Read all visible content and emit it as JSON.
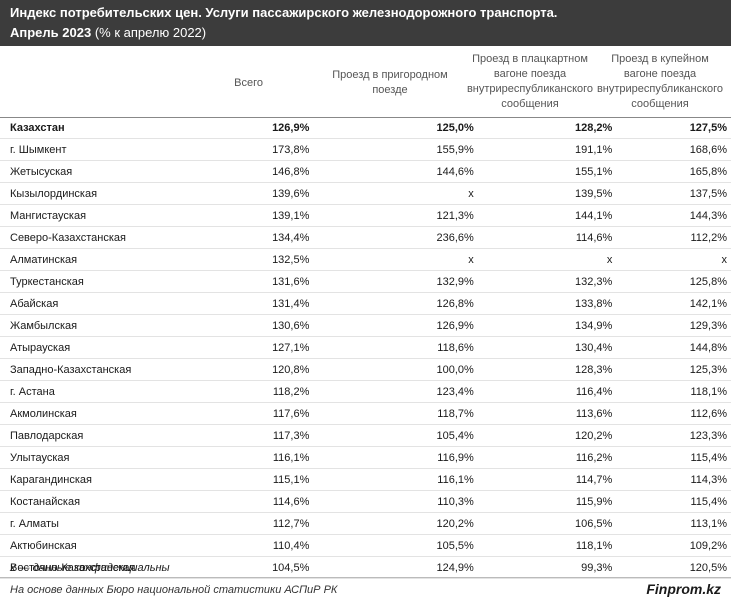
{
  "header": {
    "title": "Индекс потребительских цен. Услуги пассажирского железнодорожного транспорта.",
    "subtitle_bold": "Апрель 2023",
    "subtitle_rest": " (% к апрелю 2022)"
  },
  "columns": {
    "total": "Всего",
    "suburban": [
      "Проезд в пригородном",
      "поезде"
    ],
    "platskart": [
      "Проезд в плацкартном",
      "вагоне поезда",
      "внутриреспубликанского",
      "сообщения"
    ],
    "coupe": [
      "Проезд в купейном",
      "вагоне поезда",
      "внутриреспубликанского",
      "сообщения"
    ]
  },
  "rows": [
    {
      "name": "Казахстан",
      "total": "126,9%",
      "suburban": "125,0%",
      "platskart": "128,2%",
      "coupe": "127,5%",
      "bold": true
    },
    {
      "name": "г. Шымкент",
      "total": "173,8%",
      "suburban": "155,9%",
      "platskart": "191,1%",
      "coupe": "168,6%"
    },
    {
      "name": "Жетысуская",
      "total": "146,8%",
      "suburban": "144,6%",
      "platskart": "155,1%",
      "coupe": "165,8%"
    },
    {
      "name": "Кызылординская",
      "total": "139,6%",
      "suburban": "х",
      "platskart": "139,5%",
      "coupe": "137,5%"
    },
    {
      "name": "Мангистауская",
      "total": "139,1%",
      "suburban": "121,3%",
      "platskart": "144,1%",
      "coupe": "144,3%"
    },
    {
      "name": "Северо-Казахстанская",
      "total": "134,4%",
      "suburban": "236,6%",
      "platskart": "114,6%",
      "coupe": "112,2%"
    },
    {
      "name": "Алматинская",
      "total": "132,5%",
      "suburban": "х",
      "platskart": "х",
      "coupe": "х"
    },
    {
      "name": "Туркестанская",
      "total": "131,6%",
      "suburban": "132,9%",
      "platskart": "132,3%",
      "coupe": "125,8%"
    },
    {
      "name": "Абайская",
      "total": "131,4%",
      "suburban": "126,8%",
      "platskart": "133,8%",
      "coupe": "142,1%"
    },
    {
      "name": "Жамбылская",
      "total": "130,6%",
      "suburban": "126,9%",
      "platskart": "134,9%",
      "coupe": "129,3%"
    },
    {
      "name": "Атырауская",
      "total": "127,1%",
      "suburban": "118,6%",
      "platskart": "130,4%",
      "coupe": "144,8%"
    },
    {
      "name": "Западно-Казахстанская",
      "total": "120,8%",
      "suburban": "100,0%",
      "platskart": "128,3%",
      "coupe": "125,3%"
    },
    {
      "name": "г. Астана",
      "total": "118,2%",
      "suburban": "123,4%",
      "platskart": "116,4%",
      "coupe": "118,1%"
    },
    {
      "name": "Акмолинская",
      "total": "117,6%",
      "suburban": "118,7%",
      "platskart": "113,6%",
      "coupe": "112,6%"
    },
    {
      "name": "Павлодарская",
      "total": "117,3%",
      "suburban": "105,4%",
      "platskart": "120,2%",
      "coupe": "123,3%"
    },
    {
      "name": "Улытауская",
      "total": "116,1%",
      "suburban": "116,9%",
      "platskart": "116,2%",
      "coupe": "115,4%"
    },
    {
      "name": "Карагандинская",
      "total": "115,1%",
      "suburban": "116,1%",
      "platskart": "114,7%",
      "coupe": "114,3%"
    },
    {
      "name": "Костанайская",
      "total": "114,6%",
      "suburban": "110,3%",
      "platskart": "115,9%",
      "coupe": "115,4%"
    },
    {
      "name": "г. Алматы",
      "total": "112,7%",
      "suburban": "120,2%",
      "platskart": "106,5%",
      "coupe": "113,1%"
    },
    {
      "name": "Актюбинская",
      "total": "110,4%",
      "suburban": "105,5%",
      "platskart": "118,1%",
      "coupe": "109,2%"
    },
    {
      "name": "Восточно-Казахстанская",
      "total": "104,5%",
      "suburban": "124,9%",
      "platskart": "99,3%",
      "coupe": "120,5%"
    }
  ],
  "footnote": "х — данные конфиденциальны",
  "source": "На основе данных Бюро национальной статистики АСПиР РК",
  "brand": "Finprom.kz"
}
